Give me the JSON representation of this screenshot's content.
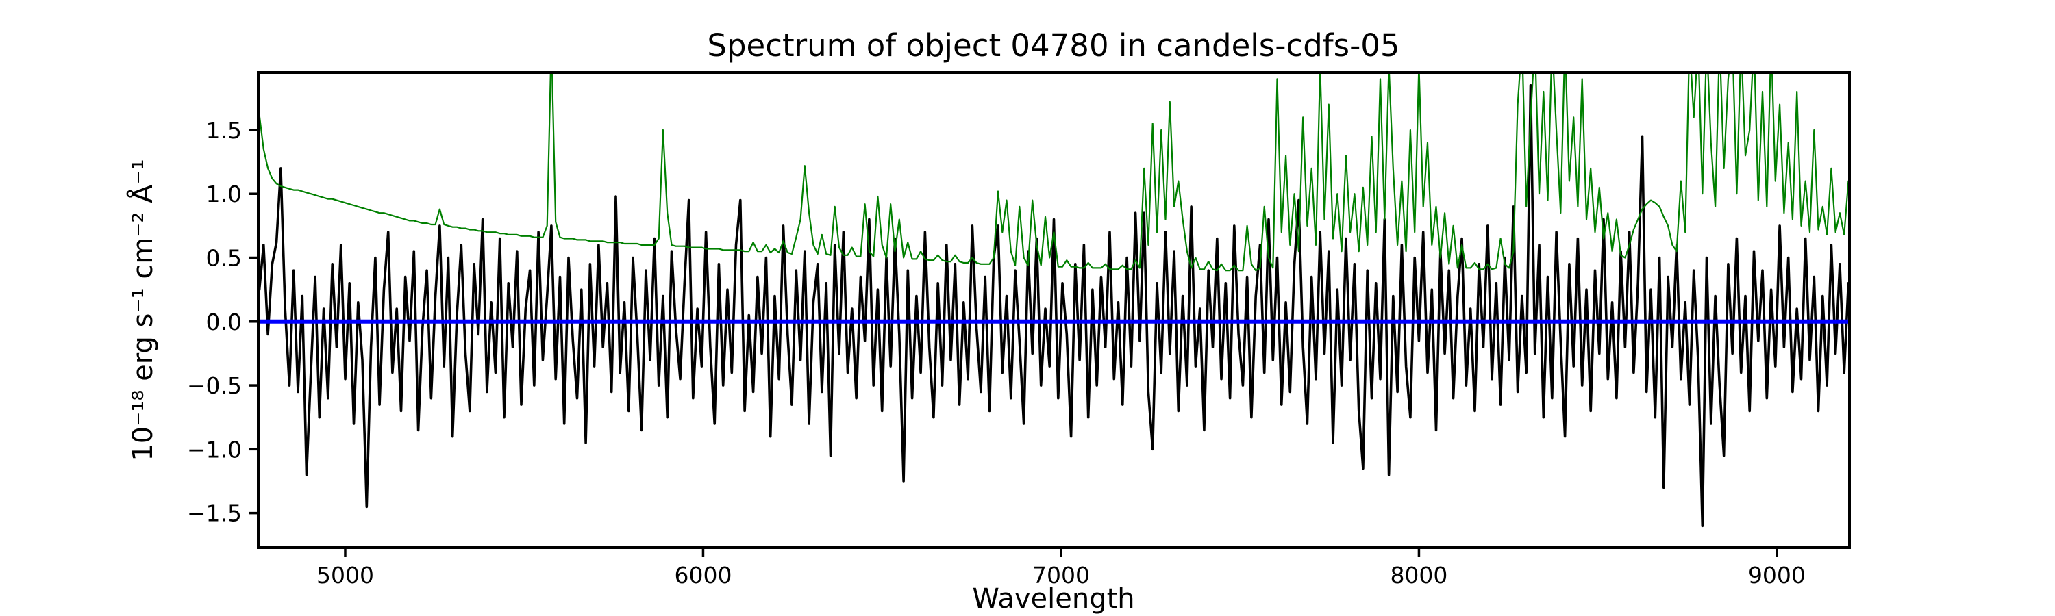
{
  "chart_data": {
    "type": "line",
    "title": "Spectrum of object 04780 in candels-cdfs-05",
    "xlabel": "Wavelength",
    "ylabel": "10⁻¹⁸ erg s⁻¹ cm⁻² Å⁻¹",
    "xlim": [
      4757,
      9203
    ],
    "ylim": [
      -1.77,
      1.95
    ],
    "grid": false,
    "legend": null,
    "background": "#ffffff",
    "x_ticks": {
      "values": [
        5000,
        6000,
        7000,
        8000,
        9000
      ],
      "labels": [
        "5000",
        "6000",
        "7000",
        "8000",
        "9000"
      ]
    },
    "y_ticks": {
      "values": [
        1.5,
        1.0,
        0.5,
        0.0,
        -0.5,
        -1.0,
        -1.5
      ],
      "labels": [
        "1.5",
        "1.0",
        "0.5",
        "0.0",
        "−0.5",
        "−1.0",
        "−1.5"
      ]
    },
    "series": [
      {
        "name": "flux-spectrum",
        "color": "#000000",
        "width": 3.6,
        "x_start": 4760,
        "x_step": 12,
        "values": [
          0.25,
          0.6,
          -0.1,
          0.45,
          0.62,
          1.2,
          0.1,
          -0.5,
          0.4,
          -0.55,
          0.2,
          -1.2,
          -0.4,
          0.35,
          -0.75,
          0.1,
          -0.6,
          0.45,
          -0.2,
          0.6,
          -0.45,
          0.3,
          -0.8,
          0.15,
          -0.3,
          -1.45,
          -0.2,
          0.5,
          -0.65,
          0.25,
          0.7,
          -0.4,
          0.1,
          -0.7,
          0.35,
          -0.15,
          0.55,
          -0.85,
          -0.05,
          0.4,
          -0.6,
          0.2,
          0.75,
          -0.35,
          0.5,
          -0.9,
          0.05,
          0.6,
          -0.25,
          -0.7,
          0.45,
          -0.1,
          0.8,
          -0.55,
          0.15,
          -0.4,
          0.65,
          -0.75,
          0.3,
          -0.2,
          0.55,
          -0.65,
          0.1,
          0.4,
          -0.5,
          0.7,
          -0.3,
          0.2,
          0.75,
          -0.45,
          0.35,
          -0.8,
          0.5,
          -0.15,
          -0.6,
          0.25,
          -0.95,
          0.45,
          -0.35,
          0.6,
          -0.2,
          0.3,
          -0.55,
          0.98,
          -0.4,
          0.15,
          -0.7,
          0.5,
          -0.1,
          -0.85,
          0.4,
          -0.3,
          0.65,
          -0.5,
          0.2,
          -0.75,
          0.55,
          -0.05,
          -0.45,
          0.3,
          0.95,
          -0.6,
          0.1,
          -0.35,
          0.7,
          -0.2,
          -0.8,
          0.45,
          -0.5,
          0.25,
          -0.4,
          0.6,
          0.95,
          -0.7,
          0.05,
          -0.55,
          0.35,
          -0.25,
          0.5,
          -0.9,
          0.2,
          -0.45,
          0.75,
          -0.1,
          -0.65,
          0.4,
          -0.3,
          0.55,
          -0.8,
          0.15,
          0.45,
          -0.55,
          0.3,
          -1.05,
          0.6,
          -0.25,
          0.7,
          -0.4,
          0.1,
          -0.6,
          0.35,
          -0.15,
          0.8,
          -0.5,
          0.25,
          -0.7,
          0.5,
          -0.35,
          0.65,
          -0.1,
          -1.25,
          0.4,
          -0.6,
          0.2,
          -0.4,
          0.7,
          -0.2,
          -0.75,
          0.3,
          -0.5,
          0.6,
          -0.3,
          0.45,
          -0.65,
          0.15,
          -0.45,
          0.75,
          -0.05,
          -0.55,
          0.35,
          -0.7,
          0.5,
          0.75,
          -0.4,
          0.2,
          -0.6,
          0.4,
          -0.15,
          -0.8,
          0.55,
          -0.25,
          0.65,
          -0.5,
          0.1,
          -0.35,
          0.8,
          -0.6,
          0.3,
          -0.1,
          -0.9,
          0.45,
          -0.3,
          0.6,
          -0.75,
          0.25,
          -0.5,
          0.35,
          -0.2,
          0.7,
          -0.45,
          0.15,
          -0.65,
          0.5,
          -0.35,
          0.85,
          -0.15,
          0.85,
          -0.55,
          -1.0,
          0.3,
          -0.4,
          0.7,
          -0.25,
          0.55,
          -0.7,
          0.2,
          -0.5,
          0.9,
          -0.35,
          0.1,
          -0.85,
          0.4,
          -0.2,
          0.65,
          -0.45,
          0.3,
          -0.6,
          0.75,
          -0.1,
          -0.5,
          0.35,
          -0.75,
          0.2,
          0.6,
          -0.4,
          0.8,
          -0.3,
          0.5,
          -0.65,
          0.15,
          -0.55,
          0.45,
          0.95,
          -0.2,
          -0.8,
          0.35,
          -0.45,
          0.7,
          -0.25,
          0.55,
          -0.95,
          0.25,
          -0.5,
          0.65,
          -0.3,
          0.45,
          -0.7,
          -1.15,
          0.4,
          -0.6,
          0.3,
          -0.45,
          0.8,
          -1.2,
          0.2,
          -0.55,
          0.6,
          -0.35,
          -0.75,
          0.5,
          -0.15,
          0.7,
          -0.4,
          0.25,
          -0.85,
          0.55,
          -0.25,
          0.4,
          -0.6,
          0.2,
          0.65,
          -0.5,
          0.1,
          -0.7,
          0.45,
          -0.2,
          0.75,
          -0.45,
          0.3,
          -0.65,
          0.5,
          -0.3,
          0.9,
          -0.55,
          0.2,
          -0.4,
          1.85,
          -0.25,
          0.6,
          -0.75,
          0.35,
          -0.6,
          0.7,
          -0.15,
          -0.9,
          0.45,
          -0.35,
          0.65,
          -0.5,
          0.25,
          -0.7,
          0.4,
          -0.25,
          0.8,
          -0.45,
          0.15,
          -0.6,
          0.55,
          -0.2,
          0.7,
          -0.4,
          0.3,
          1.45,
          -0.55,
          0.25,
          -0.75,
          0.5,
          -1.3,
          0.35,
          -0.2,
          0.6,
          -0.45,
          0.15,
          -0.65,
          0.4,
          -0.3,
          -1.6,
          0.5,
          -0.8,
          0.2,
          -0.5,
          -1.05,
          0.45,
          -0.25,
          0.65,
          -0.4,
          0.2,
          -0.7,
          0.55,
          -0.15,
          0.4,
          -0.6,
          0.25,
          -0.35,
          0.75,
          -0.2,
          0.5,
          -0.55,
          0.1,
          -0.45,
          0.65,
          -0.3,
          0.35,
          -0.7,
          0.2,
          -0.5,
          0.6,
          -0.25,
          0.45,
          -0.4,
          0.3
        ]
      },
      {
        "name": "noise-spectrum",
        "color": "#008000",
        "width": 2.2,
        "x_start": 4760,
        "x_step": 12,
        "values": [
          1.62,
          1.35,
          1.2,
          1.12,
          1.08,
          1.06,
          1.05,
          1.04,
          1.03,
          1.03,
          1.02,
          1.01,
          1.0,
          0.99,
          0.98,
          0.97,
          0.96,
          0.96,
          0.95,
          0.94,
          0.93,
          0.92,
          0.91,
          0.9,
          0.89,
          0.88,
          0.87,
          0.86,
          0.85,
          0.85,
          0.84,
          0.83,
          0.82,
          0.81,
          0.8,
          0.79,
          0.79,
          0.78,
          0.77,
          0.77,
          0.76,
          0.76,
          0.88,
          0.76,
          0.75,
          0.74,
          0.74,
          0.73,
          0.73,
          0.72,
          0.72,
          0.71,
          0.71,
          0.7,
          0.7,
          0.7,
          0.69,
          0.69,
          0.68,
          0.68,
          0.68,
          0.67,
          0.67,
          0.67,
          0.66,
          0.66,
          0.66,
          0.75,
          2.2,
          0.78,
          0.66,
          0.65,
          0.65,
          0.65,
          0.64,
          0.64,
          0.64,
          0.63,
          0.63,
          0.63,
          0.63,
          0.62,
          0.62,
          0.62,
          0.62,
          0.61,
          0.61,
          0.61,
          0.61,
          0.6,
          0.6,
          0.6,
          0.6,
          0.65,
          1.5,
          0.85,
          0.6,
          0.59,
          0.59,
          0.59,
          0.58,
          0.58,
          0.58,
          0.58,
          0.57,
          0.57,
          0.57,
          0.57,
          0.56,
          0.56,
          0.56,
          0.56,
          0.56,
          0.55,
          0.55,
          0.62,
          0.55,
          0.55,
          0.6,
          0.54,
          0.57,
          0.54,
          0.63,
          0.54,
          0.53,
          0.66,
          0.8,
          1.22,
          0.85,
          0.6,
          0.53,
          0.68,
          0.53,
          0.52,
          0.9,
          0.58,
          0.52,
          0.52,
          0.58,
          0.51,
          0.51,
          0.92,
          0.55,
          0.51,
          0.98,
          0.6,
          0.5,
          0.92,
          0.55,
          0.8,
          0.5,
          0.62,
          0.49,
          0.49,
          0.55,
          0.49,
          0.48,
          0.48,
          0.52,
          0.48,
          0.47,
          0.47,
          0.52,
          0.47,
          0.46,
          0.46,
          0.5,
          0.46,
          0.45,
          0.45,
          0.45,
          0.5,
          1.02,
          0.7,
          0.95,
          0.55,
          0.44,
          0.9,
          0.5,
          0.44,
          0.95,
          0.6,
          0.44,
          0.82,
          0.5,
          0.7,
          0.43,
          0.43,
          0.48,
          0.43,
          0.43,
          0.42,
          0.42,
          0.46,
          0.42,
          0.42,
          0.42,
          0.45,
          0.41,
          0.41,
          0.41,
          0.44,
          0.41,
          0.41,
          0.48,
          0.42,
          1.2,
          0.6,
          1.55,
          0.7,
          1.5,
          0.8,
          1.72,
          0.9,
          1.1,
          0.8,
          0.55,
          0.42,
          0.5,
          0.41,
          0.41,
          0.47,
          0.41,
          0.4,
          0.45,
          0.4,
          0.4,
          0.44,
          0.4,
          0.4,
          0.75,
          0.45,
          0.4,
          0.42,
          0.9,
          0.5,
          0.42,
          1.9,
          0.7,
          1.3,
          0.6,
          1.0,
          0.55,
          1.6,
          0.75,
          1.2,
          0.6,
          2.0,
          0.8,
          1.7,
          0.65,
          1.0,
          0.55,
          1.3,
          0.7,
          1.0,
          0.55,
          1.05,
          0.6,
          1.45,
          0.7,
          1.9,
          0.8,
          2.0,
          1.2,
          0.6,
          1.1,
          0.55,
          1.5,
          0.7,
          2.0,
          0.9,
          1.4,
          0.6,
          0.9,
          0.5,
          0.85,
          0.45,
          0.75,
          0.42,
          0.6,
          0.42,
          0.42,
          0.46,
          0.41,
          0.41,
          0.45,
          0.41,
          0.42,
          0.65,
          0.45,
          0.42,
          0.55,
          1.7,
          2.2,
          0.9,
          1.6,
          2.2,
          1.0,
          1.8,
          0.95,
          2.2,
          1.5,
          0.85,
          2.2,
          1.1,
          1.6,
          0.9,
          1.9,
          0.8,
          1.2,
          0.7,
          1.05,
          0.65,
          0.85,
          0.55,
          0.8,
          0.52,
          0.5,
          0.6,
          0.72,
          0.8,
          0.88,
          0.92,
          0.95,
          0.93,
          0.9,
          0.82,
          0.75,
          0.6,
          0.55,
          1.1,
          0.7,
          2.2,
          1.6,
          2.2,
          1.0,
          2.2,
          1.4,
          0.9,
          2.2,
          1.2,
          1.9,
          2.2,
          1.0,
          2.2,
          1.3,
          1.5,
          2.2,
          0.95,
          1.8,
          0.9,
          2.2,
          1.1,
          1.7,
          0.85,
          1.4,
          0.8,
          1.8,
          0.75,
          1.1,
          0.7,
          1.5,
          0.72,
          0.9,
          0.68,
          1.2,
          0.7,
          0.85,
          0.68,
          1.1
        ]
      },
      {
        "name": "zero-model-line",
        "color": "#0000ff",
        "width": 6,
        "constant_y": 0.0
      }
    ]
  }
}
